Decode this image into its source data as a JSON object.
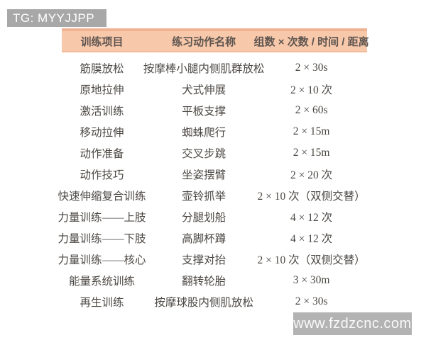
{
  "badge": {
    "text": "TG: MYYJJPP",
    "bg": "#a8a8a8",
    "color": "#ffffff"
  },
  "watermark": {
    "text": "www.fzdzcnc.com",
    "bg": "#b3b3b3"
  },
  "table": {
    "accent": "#f8c8ab",
    "accent_dark": "#efb292",
    "accent_mid": "#f2bb9c",
    "headers": [
      "训练项目",
      "练习动作名称",
      "组数 × 次数 / 时间 / 距离"
    ],
    "rows": [
      {
        "item": "筋膜放松",
        "exercise": "按摩棒小腿内侧肌群放松",
        "volume": "2 × 30s"
      },
      {
        "item": "原地拉伸",
        "exercise": "犬式伸展",
        "volume": "2 × 10 次"
      },
      {
        "item": "激活训练",
        "exercise": "平板支撑",
        "volume": "2 × 60s"
      },
      {
        "item": "移动拉伸",
        "exercise": "蜘蛛爬行",
        "volume": "2 × 15m"
      },
      {
        "item": "动作准备",
        "exercise": "交叉步跳",
        "volume": "2 × 15m"
      },
      {
        "item": "动作技巧",
        "exercise": "坐姿摆臂",
        "volume": "2 × 20 次"
      },
      {
        "item": "快速伸缩复合训练",
        "exercise": "壶铃抓举",
        "volume": "2 × 10 次（双侧交替）"
      },
      {
        "item": "力量训练——上肢",
        "exercise": "分腿划船",
        "volume": "4 × 12 次"
      },
      {
        "item": "力量训练——下肢",
        "exercise": "高脚杯蹲",
        "volume": "4 × 12 次"
      },
      {
        "item": "力量训练——核心",
        "exercise": "支撑对抬",
        "volume": "2 × 10 次（双侧交替）"
      },
      {
        "item": "能量系统训练",
        "exercise": "翻转轮胎",
        "volume": "3 × 30m"
      },
      {
        "item": "再生训练",
        "exercise": "按摩球股内侧肌放松",
        "volume": "2 × 30s"
      }
    ]
  }
}
